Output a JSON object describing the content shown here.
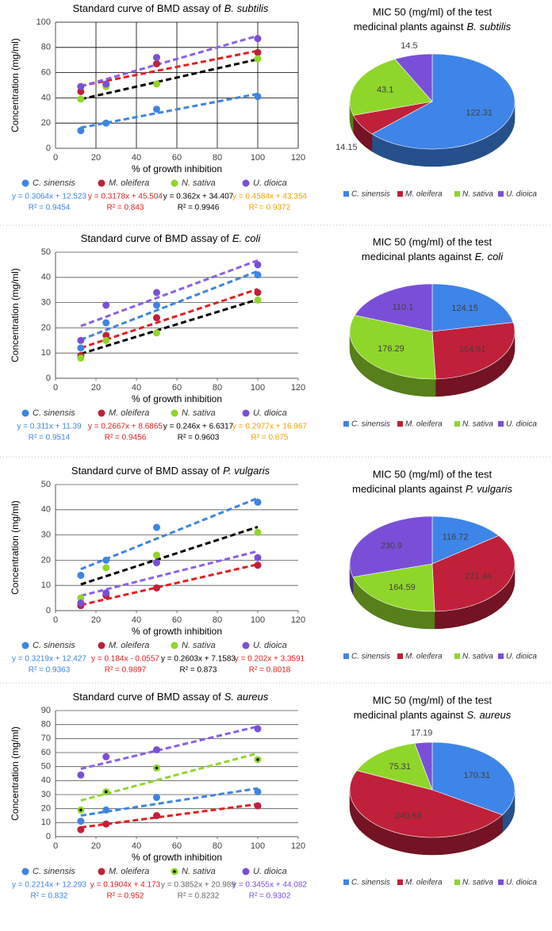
{
  "chart_data": [
    {
      "type": "scatter",
      "title": "Standard curve of BMD assay of",
      "organism": "B. subtilis",
      "x_label": "% of growth inhibition",
      "y_label": "Concentration (mg/ml)",
      "x": [
        12.5,
        25,
        50,
        100
      ],
      "xlim": [
        0,
        120
      ],
      "xticks": [
        0,
        20,
        40,
        60,
        80,
        100,
        120
      ],
      "ylim": [
        0,
        100
      ],
      "yticks": [
        0,
        20,
        40,
        60,
        80,
        100
      ],
      "grid": "both",
      "grid_color": "#000000",
      "legend": "bottom",
      "series": [
        {
          "name": "C. sinensis",
          "color": "#3d85e0",
          "values": [
            14,
            20,
            31,
            41
          ],
          "trendline": {
            "slope": 0.3064,
            "intercept": 12.523,
            "color": "#3d85e0",
            "label_color": "#3d85e0",
            "equation": "y = 0.3064x + 12.523",
            "r2": "R² = 0.9454"
          }
        },
        {
          "name": "M. oleifera",
          "color": "#c0203a",
          "values": [
            45,
            50,
            67,
            76
          ],
          "trendline": {
            "slope": 0.3178,
            "intercept": 45.504,
            "color": "#e02020",
            "label_color": "#e02020",
            "equation": "y = 0.3178x + 45.504",
            "r2": "R² = 0.843"
          }
        },
        {
          "name": "N. sativa",
          "color": "#8fd62a",
          "values": [
            39,
            49,
            51,
            71
          ],
          "trendline": {
            "slope": 0.362,
            "intercept": 34.407,
            "color": "#000000",
            "label_color": "#000000",
            "equation": "y = 0.362x + 34.407",
            "r2": "R² = 0.9946"
          }
        },
        {
          "name": "U. dioica",
          "color": "#7a4fd8",
          "values": [
            49,
            51,
            72,
            87
          ],
          "trendline": {
            "slope": 0.4584,
            "intercept": 43.354,
            "color": "#8a5fe8",
            "label_color": "#f0a000",
            "equation": "y = 0.4584x + 43.354",
            "r2": "R² = 0.9372"
          }
        }
      ]
    },
    {
      "type": "pie",
      "title_lines": [
        "MIC 50 (mg/ml) of the test",
        "medicinal plants against"
      ],
      "organism": "B. subtilis",
      "legend": "bottom",
      "categories": [
        "C. sinensis",
        "M. oleifera",
        "N. sativa",
        "U. dioica"
      ],
      "values": [
        122.31,
        14.15,
        43.1,
        14.5
      ],
      "colors": [
        "#3d85e8",
        "#c0203a",
        "#8fd62a",
        "#7a4fd8"
      ]
    },
    {
      "type": "scatter",
      "title": "Standard curve of BMD assay of",
      "organism": "E. coli",
      "x_label": "% of growth inhibition",
      "y_label": "Concentration (mg/ml)",
      "x": [
        12.5,
        25,
        50,
        100
      ],
      "xlim": [
        0,
        120
      ],
      "xticks": [
        0,
        20,
        40,
        60,
        80,
        100,
        120
      ],
      "ylim": [
        0,
        50
      ],
      "yticks": [
        0,
        10,
        20,
        30,
        40,
        50
      ],
      "grid": "y",
      "grid_color": "#555555",
      "legend": "bottom",
      "series": [
        {
          "name": "C. sinensis",
          "color": "#3d85e0",
          "values": [
            12,
            22,
            29,
            41
          ],
          "trendline": {
            "slope": 0.311,
            "intercept": 11.39,
            "color": "#3d85e0",
            "label_color": "#3d85e0",
            "equation": "y = 0.311x + 11.39",
            "r2": "R² = 0.9514"
          }
        },
        {
          "name": "M. oleifera",
          "color": "#c0203a",
          "values": [
            9,
            17,
            24,
            34
          ],
          "trendline": {
            "slope": 0.2667,
            "intercept": 8.6865,
            "color": "#e02020",
            "label_color": "#e02020",
            "equation": "y = 0.2667x + 8.6865",
            "r2": "R² = 0.9456"
          }
        },
        {
          "name": "N. sativa",
          "color": "#8fd62a",
          "values": [
            8,
            15,
            18,
            31
          ],
          "trendline": {
            "slope": 0.246,
            "intercept": 6.6317,
            "color": "#000000",
            "label_color": "#000000",
            "equation": "y = 0.246x + 6.6317",
            "r2": "R² = 0.9603"
          }
        },
        {
          "name": "U. dioica",
          "color": "#7a4fd8",
          "values": [
            15,
            29,
            34,
            45
          ],
          "trendline": {
            "slope": 0.2977,
            "intercept": 16.967,
            "color": "#8a5fe8",
            "label_color": "#f0a000",
            "equation": "y = 0.2977x + 16.967",
            "r2": "R² = 0.875"
          }
        }
      ]
    },
    {
      "type": "pie",
      "title_lines": [
        "MIC 50 (mg/ml) of the test",
        "medicinal plants against"
      ],
      "organism": "E. coli",
      "legend": "bottom",
      "categories": [
        "C. sinensis",
        "M. oleifera",
        "N. sativa",
        "U. dioica"
      ],
      "values": [
        124.15,
        154.91,
        176.29,
        110.1
      ],
      "colors": [
        "#3d85e8",
        "#c0203a",
        "#8fd62a",
        "#7a4fd8"
      ]
    },
    {
      "type": "scatter",
      "title": "Standard curve of BMD assay of",
      "organism": "P. vulgaris",
      "x_label": "% of growth inhibition",
      "y_label": "Concentration (mg/ml)",
      "x": [
        12.5,
        25,
        50,
        100
      ],
      "xlim": [
        0,
        120
      ],
      "xticks": [
        0,
        20,
        40,
        60,
        80,
        100,
        120
      ],
      "ylim": [
        0,
        50
      ],
      "yticks": [
        0,
        10,
        20,
        30,
        40,
        50
      ],
      "grid": "y",
      "grid_color": "#555555",
      "legend": "bottom",
      "series": [
        {
          "name": "C. sinensis",
          "color": "#3d85e0",
          "values": [
            14,
            20,
            33,
            43
          ],
          "trendline": {
            "slope": 0.3219,
            "intercept": 12.427,
            "color": "#3d85e0",
            "label_color": "#3d85e0",
            "equation": "y = 0.3219x + 12.427",
            "r2": "R² = 0.9363"
          }
        },
        {
          "name": "M. oleifera",
          "color": "#c0203a",
          "values": [
            2,
            6,
            9,
            18
          ],
          "trendline": {
            "slope": 0.184,
            "intercept": -0.0557,
            "color": "#e02020",
            "label_color": "#e02020",
            "equation": "y = 0.184x - 0.0557",
            "r2": "R² = 0.9897"
          }
        },
        {
          "name": "N. sativa",
          "color": "#8fd62a",
          "values": [
            5,
            17,
            22,
            31
          ],
          "trendline": {
            "slope": 0.2603,
            "intercept": 7.1583,
            "color": "#000000",
            "label_color": "#000000",
            "equation": "y = 0.2603x + 7.1583",
            "r2": "R² = 0.873"
          }
        },
        {
          "name": "U. dioica",
          "color": "#7a4fd8",
          "values": [
            3,
            7,
            19,
            21
          ],
          "trendline": {
            "slope": 0.202,
            "intercept": 3.3591,
            "color": "#8a5fe8",
            "label_color": "#e02020",
            "equation": "y = 0.202x + 3.3591",
            "r2": "R² = 0.8018"
          }
        }
      ]
    },
    {
      "type": "pie",
      "title_lines": [
        "MIC 50 (mg/ml) of the test",
        "medicinal plants against"
      ],
      "organism": "P. vulgaris",
      "legend": "bottom",
      "categories": [
        "C. sinensis",
        "M. oleifera",
        "N. sativa",
        "U. dioica"
      ],
      "values": [
        116.72,
        271.44,
        164.59,
        230.9
      ],
      "colors": [
        "#3d85e8",
        "#c0203a",
        "#8fd62a",
        "#7a4fd8"
      ]
    },
    {
      "type": "scatter",
      "title": "Standard curve of BMD assay of",
      "organism": "S. aureus",
      "x_label": "% of growth inhibition",
      "y_label": "Concentration (mg/ml)",
      "x": [
        12.5,
        25,
        50,
        100
      ],
      "xlim": [
        0,
        120
      ],
      "xticks": [
        0,
        20,
        40,
        60,
        80,
        100,
        120
      ],
      "ylim": [
        0,
        90
      ],
      "yticks": [
        0,
        10,
        20,
        30,
        40,
        50,
        60,
        70,
        80,
        90
      ],
      "grid": "y",
      "grid_color": "#555555",
      "legend": "bottom",
      "series": [
        {
          "name": "C. sinensis",
          "color": "#3d85e0",
          "values": [
            11,
            19,
            28,
            32
          ],
          "trendline": {
            "slope": 0.2214,
            "intercept": 12.293,
            "color": "#3d85e0",
            "label_color": "#3d85e0",
            "equation": "y = 0.2214x + 12.293",
            "r2": "R² = 0.832"
          }
        },
        {
          "name": "M. oleifera",
          "color": "#c0203a",
          "values": [
            5,
            9,
            15,
            22
          ],
          "trendline": {
            "slope": 0.1904,
            "intercept": 4.173,
            "color": "#e02020",
            "label_color": "#e02020",
            "equation": "y = 0.1904x + 4.173",
            "r2": "R² = 0.952"
          }
        },
        {
          "name": "N. sativa",
          "color": "#8fd62a",
          "marker_center": "#000000",
          "values": [
            19,
            32,
            49,
            55
          ],
          "trendline": {
            "slope": 0.3852,
            "intercept": 20.989,
            "color": "#8fd62a",
            "label_color": "#666666",
            "equation": "y = 0.3852x + 20.989",
            "r2": "R² = 0.8232"
          }
        },
        {
          "name": "U. dioica",
          "color": "#7a4fd8",
          "values": [
            44,
            57,
            62,
            77
          ],
          "trendline": {
            "slope": 0.3455,
            "intercept": 44.082,
            "color": "#8a5fe8",
            "label_color": "#7a4fd8",
            "equation": "y = 0.3455x + 44.082",
            "r2": "R² = 0.9302"
          }
        }
      ]
    },
    {
      "type": "pie",
      "title_lines": [
        "MIC 50 (mg/ml) of the test",
        "medicinal plants against"
      ],
      "organism": "S. aureus",
      "legend": "bottom",
      "categories": [
        "C. sinensis",
        "M. oleifera",
        "N. sativa",
        "U. dioica"
      ],
      "values": [
        170.31,
        240.69,
        75.31,
        17.19
      ],
      "colors": [
        "#3d85e8",
        "#c0203a",
        "#8fd62a",
        "#7a4fd8"
      ]
    }
  ]
}
